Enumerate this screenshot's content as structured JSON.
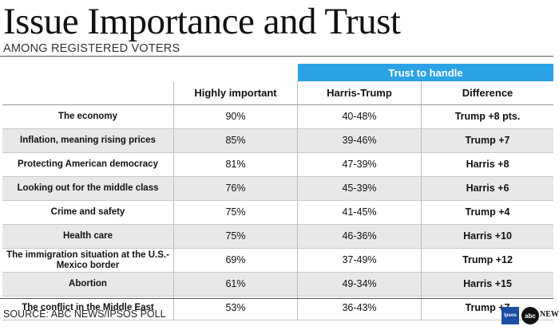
{
  "title": "Issue Importance and Trust",
  "subtitle": "AMONG REGISTERED VOTERS",
  "banner": "Trust to handle",
  "source": "SOURCE: ABC NEWS/IPSOS POLL",
  "logos": {
    "ipsos": "Ipsos",
    "abc": "abc",
    "news": "NEWS"
  },
  "chart_data": {
    "type": "table",
    "columns": [
      "",
      "Highly important",
      "Harris-Trump",
      "Difference"
    ],
    "rows": [
      {
        "issue": "The economy",
        "important": "90%",
        "harris_trump": "40-48%",
        "difference": "Trump +8 pts."
      },
      {
        "issue": "Inflation, meaning rising prices",
        "important": "85%",
        "harris_trump": "39-46%",
        "difference": "Trump +7"
      },
      {
        "issue": "Protecting American democracy",
        "important": "81%",
        "harris_trump": "47-39%",
        "difference": "Harris +8"
      },
      {
        "issue": "Looking out for the middle class",
        "important": "76%",
        "harris_trump": "45-39%",
        "difference": "Harris +6"
      },
      {
        "issue": "Crime and safety",
        "important": "75%",
        "harris_trump": "41-45%",
        "difference": "Trump +4"
      },
      {
        "issue": "Health care",
        "important": "75%",
        "harris_trump": "46-36%",
        "difference": "Harris +10"
      },
      {
        "issue": "The immigration situation at the U.S.-Mexico border",
        "important": "69%",
        "harris_trump": "37-49%",
        "difference": "Trump +12"
      },
      {
        "issue": "Abortion",
        "important": "61%",
        "harris_trump": "49-34%",
        "difference": "Harris +15"
      },
      {
        "issue": "The conflict in the Middle East",
        "important": "53%",
        "harris_trump": "36-43%",
        "difference": "Trump +7"
      }
    ]
  }
}
